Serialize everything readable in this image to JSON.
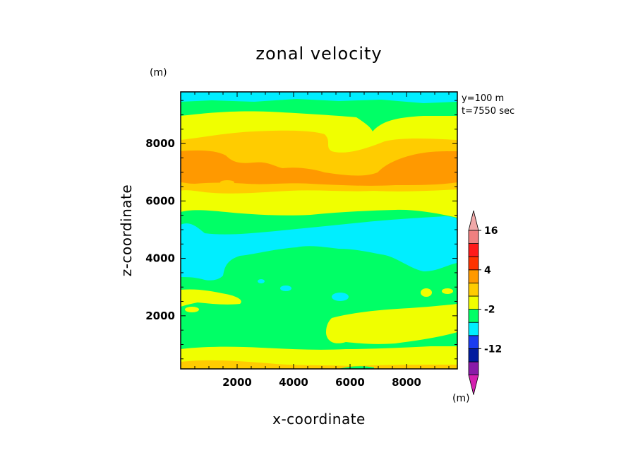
{
  "chart_data": {
    "type": "heatmap",
    "title": "zonal velocity",
    "xlabel": "x-coordinate",
    "ylabel": "z-coordinate",
    "y_unit": "(m)",
    "cb_unit": "(m)",
    "annotations": [
      "y=100 m",
      "t=7550 sec"
    ],
    "xlim": [
      0,
      9800
    ],
    "ylim": [
      150,
      9800
    ],
    "xticks": [
      2000,
      4000,
      6000,
      8000
    ],
    "xtick_labels": [
      "2000",
      "4000",
      "6000",
      "8000"
    ],
    "yticks": [
      2000,
      4000,
      6000,
      8000
    ],
    "ytick_labels": [
      "2000",
      "4000",
      "6000",
      "8000"
    ],
    "colorbar": {
      "colors": [
        "#d41fb0",
        "#8a1aa8",
        "#001a9e",
        "#1a3cf0",
        "#00eeff",
        "#00ff66",
        "#f0ff00",
        "#ffcc00",
        "#ff9900",
        "#ff3300",
        "#ff1a1a",
        "#f08080",
        "#f0a8a8"
      ],
      "tick_labels": [
        "-12",
        "-2",
        "4",
        "16"
      ],
      "tick_after_band": [
        2,
        5,
        8,
        11
      ]
    },
    "bands": [
      {
        "z0": 150,
        "z1": 300,
        "color": "#f0ff00",
        "notes": "mixed"
      },
      {
        "z0": 300,
        "z1": 800,
        "color": "#00ff66"
      },
      {
        "z0": 800,
        "z1": 1500,
        "color": "#00ff66"
      },
      {
        "z0": 1500,
        "z1": 2500,
        "color": "#00ff66"
      },
      {
        "z0": 2500,
        "z1": 3000,
        "color": "#f0ff00"
      },
      {
        "z0": 3000,
        "z1": 4000,
        "color": "#00ff66"
      },
      {
        "z0": 4000,
        "z1": 5500,
        "color": "#00eeff"
      },
      {
        "z0": 5500,
        "z1": 6000,
        "color": "#00ff66"
      },
      {
        "z0": 6000,
        "z1": 6800,
        "color": "#f0ff00"
      },
      {
        "z0": 6800,
        "z1": 8200,
        "color": "#ffcc00"
      },
      {
        "z0": 8200,
        "z1": 9000,
        "color": "#f0ff00"
      },
      {
        "z0": 9000,
        "z1": 9600,
        "color": "#00ff66"
      },
      {
        "z0": 9600,
        "z1": 9800,
        "color": "#00eeff"
      }
    ]
  }
}
